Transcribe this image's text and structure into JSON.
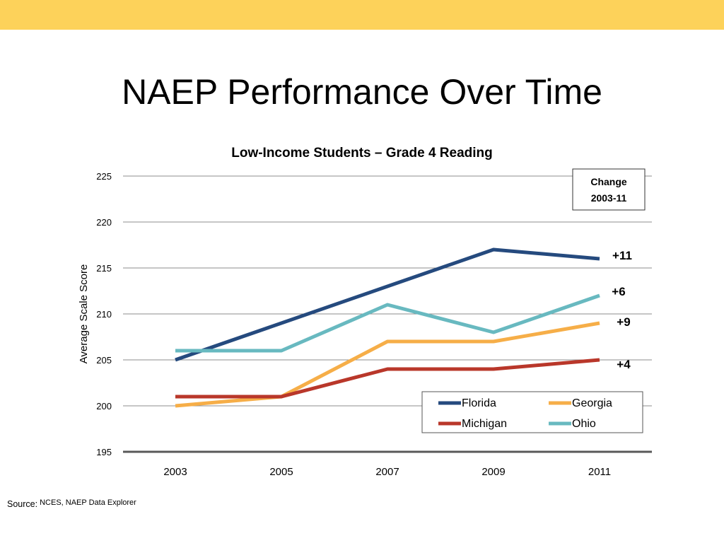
{
  "slide": {
    "title": "NAEP Performance Over Time",
    "accent_color": "#FDD25A",
    "source_label": "Source:",
    "source_text": "NCES, NAEP Data Explorer"
  },
  "chart_data": {
    "type": "line",
    "title": "Low-Income Students – Grade 4 Reading",
    "xlabel": "",
    "ylabel": "Average Scale Score",
    "x": [
      "2003",
      "2005",
      "2007",
      "2009",
      "2011"
    ],
    "ylim": [
      195,
      225
    ],
    "yticks": [
      195,
      200,
      205,
      210,
      215,
      220,
      225
    ],
    "grid": "horizontal",
    "legend_position": "bottom-right",
    "series": [
      {
        "name": "Florida",
        "color": "#254A7E",
        "values": [
          205,
          209,
          213,
          217,
          216
        ],
        "change": "+11"
      },
      {
        "name": "Georgia",
        "color": "#F6AE48",
        "values": [
          200,
          201,
          207,
          207,
          209
        ],
        "change": "+9"
      },
      {
        "name": "Michigan",
        "color": "#B9372A",
        "values": [
          201,
          201,
          204,
          204,
          205
        ],
        "change": "+4"
      },
      {
        "name": "Ohio",
        "color": "#68B9C0",
        "values": [
          206,
          206,
          211,
          208,
          212
        ],
        "change": "+6"
      }
    ],
    "change_box": {
      "line1": "Change",
      "line2": "2003-11"
    }
  }
}
